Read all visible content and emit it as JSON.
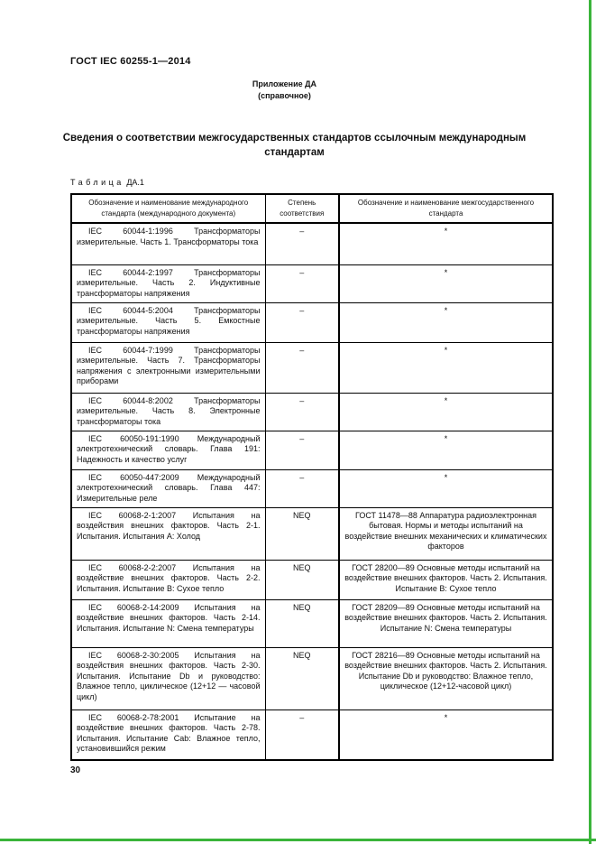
{
  "page": {
    "doc_code": "ГОСТ IEC 60255-1—2014",
    "annex_line1": "Приложение ДА",
    "annex_line2": "(справочное)",
    "title": "Сведения о соответствии межгосударственных стандартов ссылочным международным стандартам",
    "table_label_word": "Таблица",
    "table_label_number": "ДА.1",
    "page_number": "30"
  },
  "table": {
    "columns": [
      "Обозначение и наименование международного стандарта (международного документа)",
      "Степень соответствия",
      "Обозначение и наименование межгосударственного стандарта"
    ],
    "rows": [
      {
        "intl": "IEC 60044-1:1996 Трансформаторы измерительные. Часть 1. Трансформаторы тока",
        "degree": "–",
        "gost": "*"
      },
      {
        "intl": "IEC 60044-2:1997 Трансформаторы измерительные. Часть 2. Индуктивные трансформаторы напряжения",
        "degree": "–",
        "gost": "*"
      },
      {
        "intl": "IEC 60044-5:2004 Трансформаторы измерительные. Часть 5. Емкостные трансформаторы напряжения",
        "degree": "–",
        "gost": "*"
      },
      {
        "intl": "IEC 60044-7:1999 Трансформаторы измерительные. Часть 7. Трансформаторы напряжения с электронными измерительными приборами",
        "degree": "–",
        "gost": "*"
      },
      {
        "intl": "IEC 60044-8:2002 Трансформаторы измерительные. Часть 8. Электронные трансформаторы тока",
        "degree": "–",
        "gost": "*"
      },
      {
        "intl": "IEC 60050-191:1990 Международный электротехнический словарь. Глава 191: Надежность и качество услуг",
        "degree": "–",
        "gost": "*"
      },
      {
        "intl": "IEC 60050-447:2009 Международный электротехнический словарь. Глава 447: Измерительные реле",
        "degree": "–",
        "gost": "*"
      },
      {
        "intl": "IEC 60068-2-1:2007 Испытания на воздействия внешних факторов. Часть 2-1. Испытания. Испытания А: Холод",
        "degree": "NEQ",
        "gost": "ГОСТ 11478—88 Аппаратура радиоэлектронная бытовая. Нормы и методы испытаний на воздействие внешних механических и климатических факторов"
      },
      {
        "intl": "IEC 60068-2-2:2007 Испытания на воздействие внешних факторов. Часть 2-2. Испытания. Испытание В: Сухое тепло",
        "degree": "NEQ",
        "gost": "ГОСТ 28200—89 Основные методы испытаний на воздействие внешних факторов. Часть 2. Испытания. Испытание В: Сухое тепло"
      },
      {
        "intl": "IEC 60068-2-14:2009 Испытания на воздействие внешних факторов. Часть 2-14. Испытания. Испытание N: Смена температуры",
        "degree": "NEQ",
        "gost": "ГОСТ 28209—89 Основные методы испытаний на воздействие внешних факторов. Часть 2. Испытания. Испытание N: Смена температуры"
      },
      {
        "intl": "IEC 60068-2-30:2005 Испытания на воздействия внешних факторов. Часть 2-30. Испытания. Испытание Db и руководство: Влажное тепло, циклическое (12+12 — часовой цикл)",
        "degree": "NEQ",
        "gost": "ГОСТ 28216—89 Основные методы испытаний на воздействие внешних факторов. Часть 2. Испытания. Испытание Db и руководство: Влажное тепло, циклическое (12+12-часовой цикл)"
      },
      {
        "intl": "IEC 60068-2-78:2001 Испытание на воздействие внешних факторов. Часть 2-78. Испытания. Испытание Cab: Влажное тепло, установившийся режим",
        "degree": "–",
        "gost": "*"
      }
    ]
  },
  "colors": {
    "scan_edge_green": "#3ab43a",
    "text": "#111111"
  }
}
